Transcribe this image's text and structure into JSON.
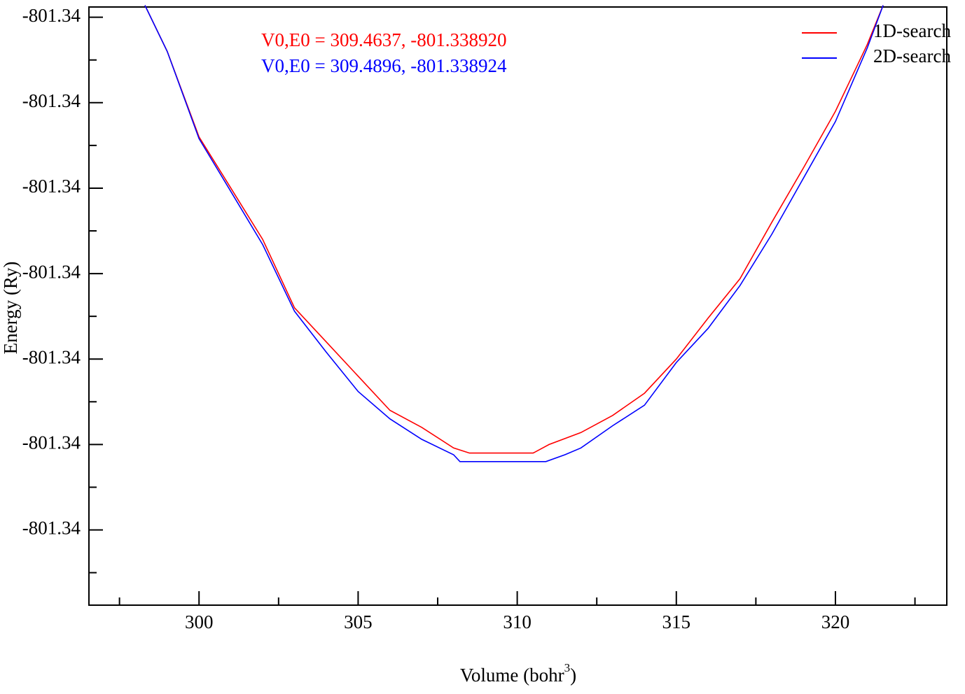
{
  "chart_data": {
    "type": "line",
    "xlabel": [
      "Volume (bohr",
      "3",
      ")"
    ],
    "ylabel": "Energy (Ry)",
    "annotations": [
      {
        "text": "V0,E0 = 309.4637, -801.338920",
        "color": "#ff0000"
      },
      {
        "text": "V0,E0 = 309.4896, -801.338924",
        "color": "#0000ff"
      }
    ],
    "legend": "upper right",
    "xlim": [
      296.54,
      323.5
    ],
    "xticks": [
      300,
      305,
      310,
      315,
      320
    ],
    "xminorticks": [
      297.5,
      302.5,
      307.5,
      312.5,
      317.5,
      322.5
    ],
    "ylim": [
      -801.339004,
      -801.338654
    ],
    "yticks": [
      {
        "value": -801.33896,
        "label": "-801.34"
      },
      {
        "value": -801.33891,
        "label": "-801.34"
      },
      {
        "value": -801.33886,
        "label": "-801.34"
      },
      {
        "value": -801.33881,
        "label": "-801.34"
      },
      {
        "value": -801.33876,
        "label": "-801.34"
      },
      {
        "value": -801.33871,
        "label": "-801.34"
      },
      {
        "value": -801.33866,
        "label": "-801.34"
      }
    ],
    "yminorticks": [
      -801.338985,
      -801.338935,
      -801.338885,
      -801.338835,
      -801.338785,
      -801.338735,
      -801.338685
    ],
    "series": [
      {
        "name": "1D-search",
        "color": "#ff0000",
        "x": [
          298.3,
          299,
          300,
          301,
          302,
          303,
          304,
          305,
          306,
          307,
          308,
          308.5,
          310.5,
          311,
          312,
          313,
          314,
          315,
          316,
          317,
          318,
          319,
          320,
          321,
          321.5
        ],
        "values": [
          -801.338653,
          -801.33868,
          -801.33873,
          -801.33876,
          -801.33879,
          -801.33883,
          -801.33885,
          -801.33887,
          -801.33889,
          -801.3389,
          -801.338912,
          -801.338915,
          -801.338915,
          -801.33891,
          -801.338903,
          -801.338893,
          -801.33888,
          -801.33886,
          -801.338836,
          -801.338813,
          -801.33878,
          -801.338748,
          -801.338715,
          -801.338676,
          -801.338653
        ]
      },
      {
        "name": "2D-search",
        "color": "#0000ff",
        "x": [
          298.3,
          299,
          300,
          301,
          302,
          303,
          304,
          305,
          306,
          307,
          308,
          308.2,
          310.9,
          311.5,
          312,
          313,
          314,
          315,
          316,
          317,
          318,
          319,
          320,
          321,
          321.5
        ],
        "values": [
          -801.338653,
          -801.33868,
          -801.338731,
          -801.338762,
          -801.338793,
          -801.338832,
          -801.338856,
          -801.338879,
          -801.338895,
          -801.338907,
          -801.338916,
          -801.33892,
          -801.33892,
          -801.338916,
          -801.338912,
          -801.338899,
          -801.338887,
          -801.338862,
          -801.338842,
          -801.338817,
          -801.338787,
          -801.338754,
          -801.338721,
          -801.338678,
          -801.338653
        ]
      }
    ]
  }
}
